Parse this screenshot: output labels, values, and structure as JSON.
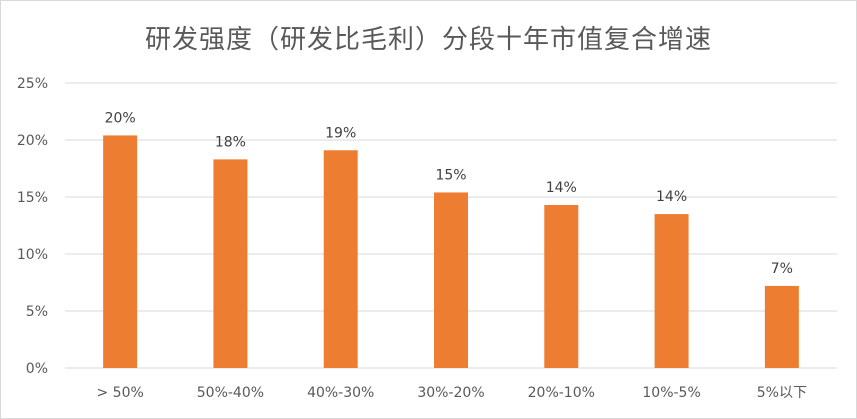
{
  "chart_data": {
    "type": "bar",
    "title": "研发强度（研发比毛利）分段十年市值复合增速",
    "categories": [
      "> 50%",
      "50%-40%",
      "40%-30%",
      "30%-20%",
      "20%-10%",
      "10%-5%",
      "5%以下"
    ],
    "values": [
      20.4,
      18.3,
      19.1,
      15.4,
      14.3,
      13.5,
      7.2
    ],
    "data_labels": [
      "20%",
      "18%",
      "19%",
      "15%",
      "14%",
      "14%",
      "7%"
    ],
    "ylim": [
      0,
      25
    ],
    "yticks": [
      0,
      5,
      10,
      15,
      20,
      25
    ],
    "ytick_labels": [
      "0%",
      "5%",
      "10%",
      "15%",
      "20%",
      "25%"
    ],
    "grid": true,
    "legend": "none",
    "bar_color": "#ED7D31",
    "grid_color": "#D9D9D9"
  }
}
